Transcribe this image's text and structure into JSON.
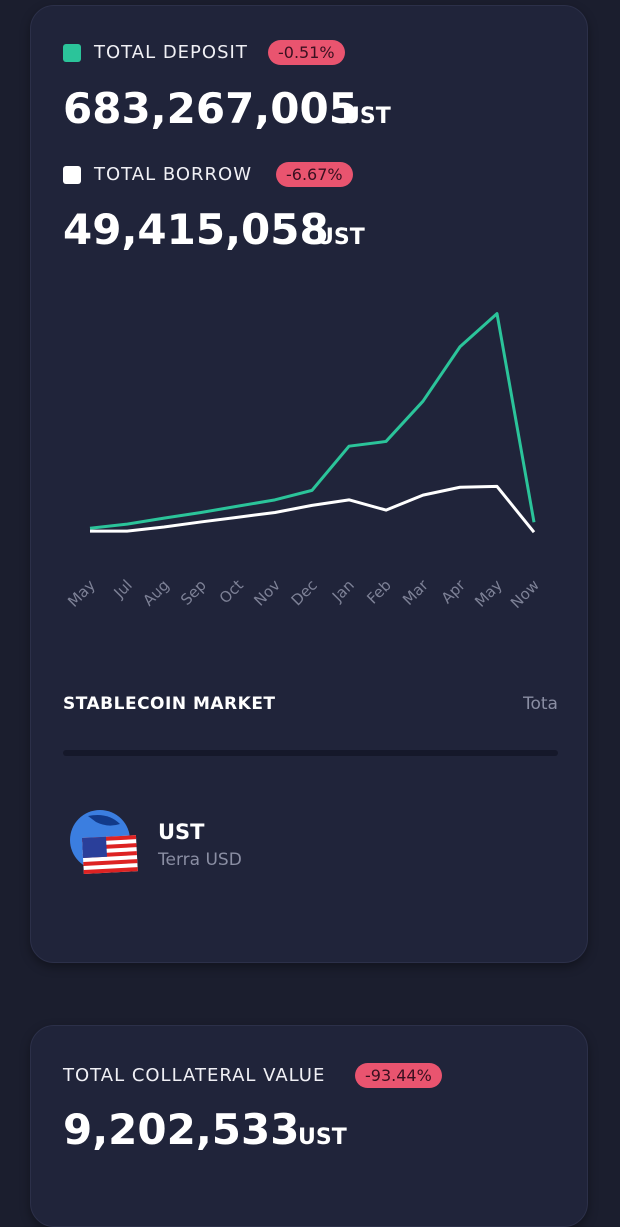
{
  "chart_data": {
    "type": "line",
    "categories": [
      "May",
      "Jul",
      "Aug",
      "Sep",
      "Oct",
      "Nov",
      "Dec",
      "Jan",
      "Feb",
      "Mar",
      "Apr",
      "May",
      "Now"
    ],
    "series": [
      {
        "name": "TOTAL DEPOSIT",
        "color": "#2bc49a",
        "values": [
          300,
          560,
          940,
          1300,
          1700,
          2100,
          2700,
          5500,
          5800,
          8350,
          11800,
          13900,
          683
        ]
      },
      {
        "name": "TOTAL BORROW",
        "color": "#ffffff",
        "values": [
          120,
          120,
          380,
          700,
          1000,
          1300,
          1750,
          2100,
          1450,
          2400,
          2900,
          2950,
          49
        ]
      }
    ],
    "ylim": [
      0,
      14000
    ]
  },
  "summary": [
    {
      "change": "-0.51%",
      "amount": "683,267,005",
      "unit": "UST"
    },
    {
      "change": "-6.67%",
      "amount": "49,415,058",
      "unit": "UST"
    }
  ],
  "market": {
    "title": "STABLECOIN MARKET",
    "column": "Tota",
    "asset": {
      "symbol": "UST",
      "name": "Terra USD"
    }
  },
  "collateral": {
    "label": "TOTAL COLLATERAL VALUE",
    "change": "-93.44%",
    "amount": "9,202,533",
    "unit": "UST"
  }
}
